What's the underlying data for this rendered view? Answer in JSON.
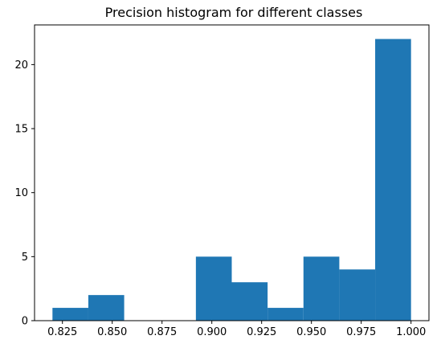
{
  "chart_data": {
    "type": "bar",
    "title": "Precision histogram for different classes",
    "xlabel": "",
    "ylabel": "",
    "bin_edges": [
      0.82,
      0.838,
      0.856,
      0.874,
      0.892,
      0.91,
      0.928,
      0.946,
      0.964,
      0.982,
      1.0
    ],
    "counts": [
      1,
      2,
      0,
      0,
      5,
      3,
      1,
      5,
      4,
      22
    ],
    "xlim": [
      0.811,
      1.009
    ],
    "ylim": [
      0,
      23.1
    ],
    "x_ticks": [
      0.825,
      0.85,
      0.875,
      0.9,
      0.925,
      0.95,
      0.975,
      1.0
    ],
    "x_tick_labels": [
      "0.825",
      "0.850",
      "0.875",
      "0.900",
      "0.925",
      "0.950",
      "0.975",
      "1.000"
    ],
    "y_ticks": [
      0,
      5,
      10,
      15,
      20
    ],
    "y_tick_labels": [
      "0",
      "5",
      "10",
      "15",
      "20"
    ],
    "grid": false,
    "bar_color": "#1f77b4"
  }
}
